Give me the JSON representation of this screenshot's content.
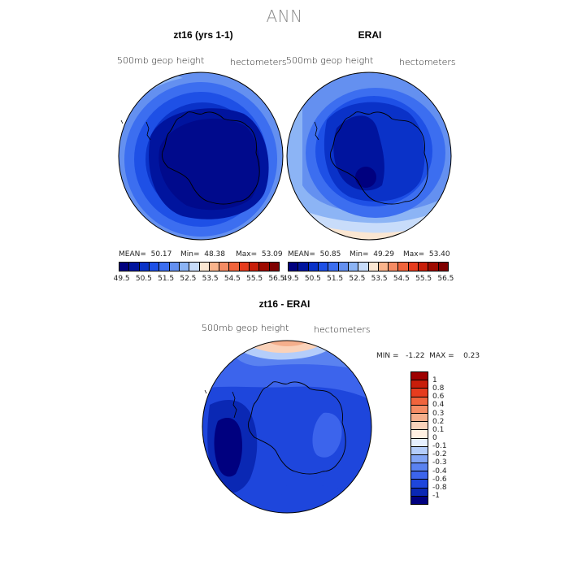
{
  "page": {
    "title": "ANN"
  },
  "panels": [
    {
      "title": "zt16 (yrs 1-1)",
      "left_label": "500mb geop height",
      "right_label": "hectometers",
      "stats": {
        "mean": "MEAN=  50.17",
        "min": "Min=  48.38",
        "max": "Max=  53.09"
      }
    },
    {
      "title": "ERAI",
      "left_label": "500mb geop height",
      "right_label": "hectometers",
      "stats": {
        "mean": "MEAN=  50.85",
        "min": "Min=  49.29",
        "max": "Max=  53.40"
      }
    },
    {
      "title": "zt16 - ERAI",
      "left_label": "500mb geop height",
      "right_label": "hectometers",
      "stats": {
        "minmax": "MIN =   -1.22  MAX =    0.23"
      }
    }
  ],
  "colorbar_top": {
    "colors": [
      "#00007f",
      "#00149e",
      "#0a32c8",
      "#1e50e6",
      "#3c6ef0",
      "#6490f0",
      "#8cb4f5",
      "#c8dcfa",
      "#fae6d2",
      "#fab48c",
      "#f58c64",
      "#f0643c",
      "#e63c1e",
      "#c81e0a",
      "#9e0a00",
      "#7f0000"
    ],
    "ticks": [
      "49.5",
      "50.5",
      "51.5",
      "52.5",
      "53.5",
      "54.5",
      "55.5",
      "56.5"
    ]
  },
  "colorbar_diff": {
    "colors": [
      "#00007f",
      "#0a28b4",
      "#1e46dc",
      "#3c64ec",
      "#5a82f0",
      "#82a5f5",
      "#b4cdfa",
      "#e6f0ff",
      "#fff0e1",
      "#fad2b9",
      "#f5af8c",
      "#f58c64",
      "#f0643c",
      "#e63c1e",
      "#c81e0a",
      "#9e0000"
    ],
    "ticks": [
      "-1",
      "-0.8",
      "-0.6",
      "-0.4",
      "-0.3",
      "-0.2",
      "-0.1",
      "0",
      "0.1",
      "0.2",
      "0.3",
      "0.4",
      "0.6",
      "0.8",
      "1"
    ]
  },
  "chart_data": [
    {
      "type": "heatmap",
      "title": "zt16 (yrs 1-1)",
      "projection": "south polar stereographic",
      "field": "500mb geop height",
      "units": "hectometers",
      "mean": 50.17,
      "min": 48.38,
      "max": 53.09,
      "contour_levels": [
        49.5,
        50,
        50.5,
        51,
        51.5,
        52,
        52.5,
        53,
        53.5,
        54,
        54.5,
        55,
        55.5,
        56,
        56.5
      ]
    },
    {
      "type": "heatmap",
      "title": "ERAI",
      "projection": "south polar stereographic",
      "field": "500mb geop height",
      "units": "hectometers",
      "mean": 50.85,
      "min": 49.29,
      "max": 53.4,
      "contour_levels": [
        49.5,
        50,
        50.5,
        51,
        51.5,
        52,
        52.5,
        53,
        53.5,
        54,
        54.5,
        55,
        55.5,
        56,
        56.5
      ]
    },
    {
      "type": "heatmap",
      "title": "zt16 - ERAI",
      "projection": "south polar stereographic",
      "field": "500mb geop height",
      "units": "hectometers",
      "min": -1.22,
      "max": 0.23,
      "contour_levels": [
        -1,
        -0.8,
        -0.6,
        -0.4,
        -0.3,
        -0.2,
        -0.1,
        0,
        0.1,
        0.2,
        0.3,
        0.4,
        0.6,
        0.8,
        1
      ]
    }
  ]
}
